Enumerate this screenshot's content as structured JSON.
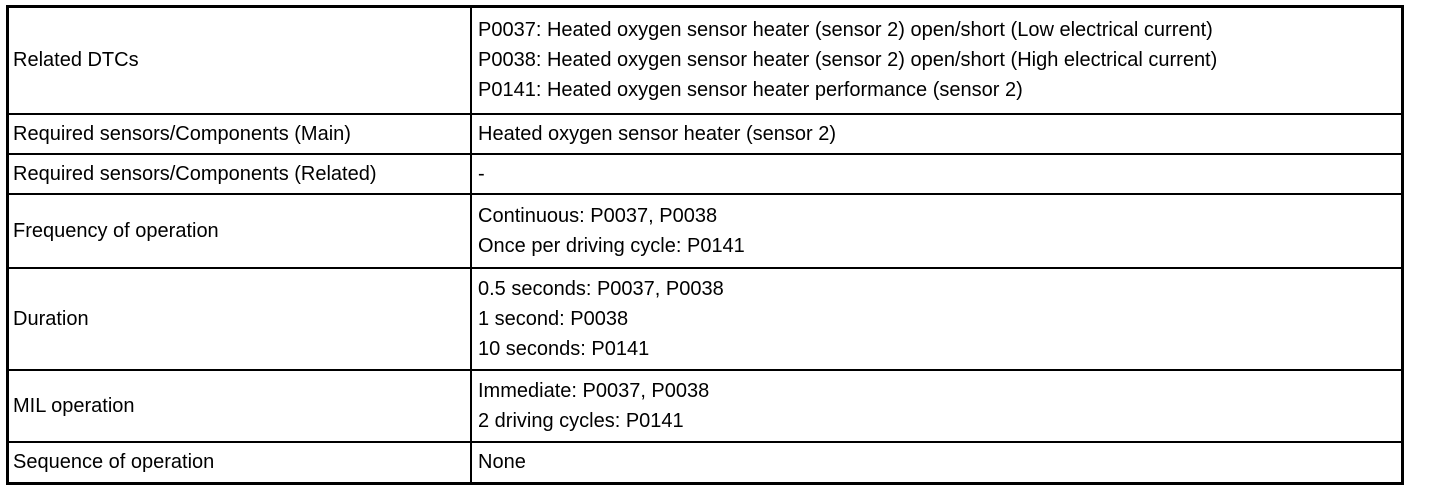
{
  "rows": [
    {
      "label": "Related DTCs",
      "values": [
        "P0037: Heated oxygen sensor heater (sensor 2) open/short (Low electrical current)",
        "P0038: Heated oxygen sensor heater (sensor 2) open/short (High electrical current)",
        "P0141: Heated oxygen sensor heater performance (sensor 2)"
      ]
    },
    {
      "label": "Required sensors/Components (Main)",
      "values": [
        "Heated oxygen sensor heater (sensor 2)"
      ]
    },
    {
      "label": "Required sensors/Components (Related)",
      "values": [
        "-"
      ]
    },
    {
      "label": "Frequency of operation",
      "values": [
        "Continuous: P0037, P0038",
        "Once per driving cycle: P0141"
      ]
    },
    {
      "label": "Duration",
      "values": [
        "0.5 seconds: P0037, P0038",
        "1 second: P0038",
        "10 seconds: P0141"
      ]
    },
    {
      "label": "MIL operation",
      "values": [
        "Immediate: P0037, P0038",
        "2 driving cycles: P0141"
      ]
    },
    {
      "label": "Sequence of operation",
      "values": [
        "None"
      ]
    }
  ]
}
